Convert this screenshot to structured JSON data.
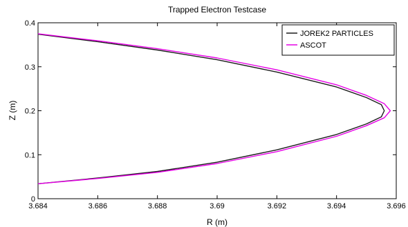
{
  "chart_data": {
    "type": "line",
    "title": "Trapped Electron Testcase",
    "xlabel": "R (m)",
    "ylabel": "Z (m)",
    "xlim": [
      3.684,
      3.696
    ],
    "ylim": [
      0,
      0.4
    ],
    "xticks": [
      "3.684",
      "3.686",
      "3.688",
      "3.69",
      "3.692",
      "3.694",
      "3.696"
    ],
    "yticks": [
      "0",
      "0.1",
      "0.2",
      "0.3",
      "0.4"
    ],
    "grid": false,
    "legend_position": "top-right",
    "series": [
      {
        "name": "JOREK2 PARTICLES",
        "color": "#1a1a1a",
        "x": [
          3.684,
          3.686,
          3.688,
          3.69,
          3.692,
          3.694,
          3.695,
          3.6955,
          3.6956,
          3.6955,
          3.695,
          3.694,
          3.692,
          3.69,
          3.688,
          3.686,
          3.684
        ],
        "y": [
          0.374,
          0.357,
          0.338,
          0.316,
          0.288,
          0.254,
          0.23,
          0.214,
          0.2,
          0.186,
          0.17,
          0.146,
          0.111,
          0.083,
          0.062,
          0.047,
          0.034
        ]
      },
      {
        "name": "ASCOT",
        "color": "#e600e6",
        "x": [
          3.684,
          3.686,
          3.688,
          3.69,
          3.692,
          3.694,
          3.695,
          3.6956,
          3.6958,
          3.6956,
          3.695,
          3.694,
          3.692,
          3.69,
          3.688,
          3.686,
          3.684
        ],
        "y": [
          0.375,
          0.359,
          0.341,
          0.32,
          0.293,
          0.259,
          0.235,
          0.216,
          0.2,
          0.184,
          0.166,
          0.142,
          0.107,
          0.08,
          0.06,
          0.046,
          0.034
        ]
      }
    ]
  }
}
